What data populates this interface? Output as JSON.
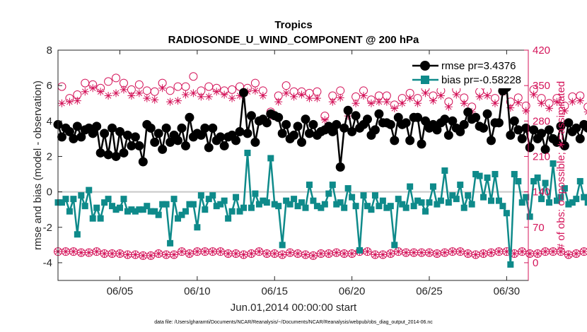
{
  "chart_data": {
    "type": "line",
    "title": "Tropics",
    "subtitle": "RADIOSONDE_U_WIND_COMPONENT @ 200 hPa",
    "xlabel": "Jun.01,2014 00:00:00 start",
    "ylabel": "rmse and bias (model - observation)",
    "y2label": "# of obs: o=possible; ∗=assimilated",
    "footnote": "data file: /Users/gharamti/Documents/NCAR/Reanalysis/~/Documents/NCAR/Reanalysis/webpub/obs_diag_output_2014-06.nc",
    "xlim": [
      1,
      31.4
    ],
    "ylim": [
      -5,
      8
    ],
    "y2lim": [
      -35,
      420
    ],
    "x_ticks": [
      5,
      10,
      15,
      20,
      25,
      30
    ],
    "x_tick_labels": [
      "06/05",
      "06/10",
      "06/15",
      "06/20",
      "06/25",
      "06/30"
    ],
    "y_ticks": [
      -4,
      -2,
      0,
      2,
      4,
      6,
      8
    ],
    "y2_ticks": [
      0,
      70,
      140,
      210,
      280,
      350,
      420
    ],
    "zero_line": 0,
    "colors": {
      "rmse": "#000000",
      "bias": "#0e8a8a",
      "obs": "#d4145a",
      "zero": "#c8c8c8"
    },
    "series": [
      {
        "name": "rmse",
        "legend": "rmse pr=3.4376",
        "marker": "circle",
        "x_start": 1.0,
        "x_step": 0.25,
        "values": [
          3.8,
          3.1,
          3.6,
          3.4,
          3.0,
          3.7,
          3.1,
          3.5,
          3.6,
          3.3,
          3.7,
          2.2,
          3.3,
          2.1,
          3.6,
          2.0,
          3.4,
          2.2,
          3.2,
          2.6,
          3.1,
          2.6,
          1.7,
          3.8,
          3.6,
          2.8,
          3.3,
          2.4,
          3.6,
          2.8,
          3.2,
          2.9,
          3.6,
          2.6,
          4.2,
          3.1,
          3.3,
          3.2,
          3.6,
          2.5,
          3.6,
          2.9,
          3.1,
          2.6,
          3.1,
          3.2,
          2.9,
          3.4,
          5.6,
          3.3,
          4.3,
          2.8,
          4.0,
          4.1,
          3.9,
          4.4,
          4.3,
          4.2,
          3.3,
          3.8,
          3.0,
          3.2,
          3.7,
          2.8,
          4.1,
          3.3,
          3.8,
          3.2,
          3.4,
          3.5,
          3.7,
          3.4,
          3.8,
          1.4,
          3.6,
          4.6,
          3.4,
          4.3,
          3.6,
          3.8,
          4.1,
          3.2,
          3.5,
          4.4,
          3.9,
          3.9,
          3.8,
          2.9,
          4.2,
          3.8,
          3.9,
          2.9,
          4.2,
          4.2,
          2.7,
          4.0,
          3.6,
          3.8,
          3.5,
          3.9,
          4.1,
          3.2,
          4.0,
          3.6,
          3.4,
          3.8,
          4.5,
          4.1,
          4.2,
          3.7,
          3.6,
          4.4,
          2.9,
          3.9,
          3.9,
          5.7,
          5.9,
          3.2,
          4.0,
          3.5,
          3.0,
          3.6,
          2.5,
          3.5,
          3.0,
          3.3,
          2.4,
          3.5,
          3.0,
          2.8,
          3.7,
          2.6,
          3.9,
          3.4,
          3.6,
          3.0,
          3.8,
          3.6,
          3.9,
          3.5,
          3.4,
          3.7,
          4.0,
          3.6,
          3.2,
          3.6,
          2.6,
          3.6,
          3.7,
          3.6,
          3.0,
          3.6,
          2.7,
          3.8,
          2.6,
          3.2,
          3.6,
          2.9,
          4.3,
          3.2,
          3.5,
          4.2,
          3.1,
          3.6,
          3.8,
          3.4,
          2.9,
          3.7,
          3.2,
          3.8,
          2.6,
          3.3,
          3.5,
          2.6,
          3.8,
          2.5
        ]
      },
      {
        "name": "bias",
        "legend": "bias pr=-0.58228",
        "marker": "square",
        "x_start": 1.0,
        "x_step": 0.25,
        "values": [
          -0.6,
          -0.6,
          -0.4,
          -1.1,
          -0.4,
          -2.4,
          -0.2,
          -0.8,
          0.1,
          -1.5,
          -0.9,
          -1.5,
          -0.6,
          -0.4,
          -0.8,
          -1.0,
          -0.9,
          -0.4,
          -1.1,
          -1.0,
          -1.1,
          -1.0,
          -1.0,
          -0.8,
          -1.1,
          -1.1,
          -1.3,
          -0.7,
          -0.7,
          -2.9,
          -0.4,
          -1.5,
          -1.3,
          -1.1,
          -0.7,
          -0.7,
          -2.0,
          -0.2,
          -1.0,
          -0.4,
          -0.2,
          -0.8,
          -0.7,
          -0.5,
          -1.5,
          -1.1,
          -0.3,
          -1.1,
          -0.9,
          2.2,
          -0.9,
          -0.1,
          -0.7,
          -0.5,
          -0.6,
          1.9,
          -0.7,
          -0.8,
          -3.0,
          -0.5,
          -0.7,
          -0.4,
          -0.8,
          -0.6,
          -0.9,
          0.4,
          -0.5,
          -0.8,
          -0.9,
          -0.7,
          -0.1,
          0.4,
          -0.7,
          -0.6,
          -0.9,
          0.2,
          -0.3,
          -0.8,
          -3.3,
          -0.2,
          -0.8,
          -1.0,
          -0.2,
          -0.8,
          -0.5,
          -0.9,
          -0.8,
          -3.0,
          -0.4,
          -0.7,
          -0.9,
          0.3,
          -0.8,
          -0.5,
          -0.6,
          -1.1,
          -0.6,
          0.3,
          -0.7,
          -0.5,
          1.2,
          -0.6,
          -0.2,
          -0.4,
          0.4,
          -0.9,
          -0.2,
          -0.7,
          1.0,
          0.9,
          -0.3,
          0.8,
          -0.5,
          1.0,
          -0.5,
          -0.8,
          -1.2,
          -4.1,
          1.0,
          0.6,
          -0.6,
          -0.3,
          -1.4,
          0.6,
          0.8,
          -0.4,
          0.5,
          -0.6,
          1.6,
          -0.5,
          -0.3,
          0.2,
          -0.7,
          -0.6,
          -0.4,
          0.6,
          -0.3,
          -0.6,
          -0.6,
          0.2,
          -0.5,
          0.2,
          -1.4,
          -0.9,
          -0.5,
          0.0,
          -0.5,
          -0.6,
          -0.9,
          -1.0,
          -2.5,
          0.4,
          -0.2,
          -0.8,
          -0.8,
          0.5,
          -0.3,
          -0.7,
          -0.6,
          -0.9,
          -0.8,
          0.4,
          -0.8,
          -0.6,
          -0.7,
          -1.3,
          -1.2,
          -0.3,
          -1.4,
          -0.6,
          -0.8,
          1.2,
          -1.5,
          -1.2,
          -1.5,
          -2.4,
          -3.5,
          -0.6,
          -2.4,
          -1.2
        ]
      },
      {
        "name": "possible",
        "axis": "right",
        "marker": "circle-open",
        "x_start": 1.0,
        "x_step": 0.25,
        "values": [
          22,
          348,
          22,
          325,
          22,
          332,
          20,
          355,
          20,
          352,
          22,
          345,
          18,
          358,
          18,
          365,
          18,
          355,
          16,
          342,
          16,
          352,
          14,
          340,
          14,
          338,
          18,
          355,
          16,
          340,
          16,
          348,
          22,
          348,
          18,
          368,
          22,
          340,
          22,
          348,
          22,
          345,
          22,
          340,
          18,
          342,
          18,
          348,
          16,
          345,
          18,
          355,
          22,
          340,
          18,
          298,
          18,
          330,
          16,
          350,
          20,
          338,
          18,
          338,
          16,
          335,
          14,
          338,
          18,
          290,
          18,
          330,
          20,
          340,
          18,
          300,
          18,
          328,
          22,
          340,
          22,
          322,
          16,
          330,
          16,
          330,
          18,
          312,
          22,
          325,
          20,
          335,
          20,
          325,
          20,
          345,
          20,
          330,
          18,
          340,
          20,
          318,
          22,
          342,
          22,
          326,
          18,
          308,
          16,
          338,
          18,
          340,
          20,
          325,
          22,
          346,
          22,
          318,
          18,
          326,
          22,
          310,
          18,
          342,
          18,
          325,
          22,
          315,
          22,
          325,
          22,
          310,
          16,
          328,
          18,
          330,
          22,
          308,
          22,
          325,
          20,
          318,
          20,
          312,
          16,
          325,
          18,
          338,
          22,
          328,
          22,
          315,
          18,
          330,
          20,
          325,
          18,
          318,
          16,
          328,
          18,
          325,
          20,
          308,
          22,
          298,
          16,
          320,
          18,
          312,
          20,
          320,
          16,
          300,
          18,
          318,
          18,
          328,
          14,
          308,
          14,
          318
        ]
      },
      {
        "name": "assimilated",
        "axis": "right",
        "marker": "asterisk",
        "x_start": 1.0,
        "x_step": 0.25,
        "values": [
          22,
          315,
          22,
          318,
          22,
          320,
          20,
          338,
          20,
          345,
          22,
          338,
          18,
          330,
          18,
          335,
          18,
          342,
          16,
          330,
          16,
          335,
          14,
          325,
          14,
          322,
          18,
          345,
          16,
          318,
          16,
          320,
          22,
          332,
          18,
          335,
          22,
          328,
          22,
          328,
          22,
          338,
          22,
          332,
          18,
          325,
          18,
          330,
          16,
          338,
          18,
          340,
          22,
          330,
          18,
          290,
          18,
          318,
          16,
          335,
          20,
          328,
          18,
          332,
          16,
          325,
          14,
          325,
          18,
          282,
          18,
          318,
          20,
          326,
          18,
          290,
          18,
          315,
          22,
          330,
          22,
          315,
          16,
          318,
          16,
          318,
          18,
          305,
          22,
          315,
          20,
          325,
          20,
          315,
          20,
          335,
          20,
          320,
          18,
          330,
          20,
          308,
          22,
          332,
          22,
          315,
          18,
          298,
          16,
          328,
          18,
          330,
          20,
          315,
          22,
          336,
          22,
          306,
          18,
          316,
          22,
          300,
          18,
          332,
          18,
          315,
          22,
          305,
          22,
          318,
          22,
          300,
          16,
          318,
          18,
          320,
          22,
          298,
          22,
          315,
          20,
          308,
          20,
          300,
          16,
          315,
          18,
          328,
          22,
          318,
          22,
          305,
          18,
          320,
          20,
          315,
          18,
          308,
          16,
          318,
          18,
          315,
          20,
          298,
          22,
          288,
          16,
          310,
          18,
          302,
          20,
          310,
          16,
          290,
          18,
          308,
          18,
          318,
          14,
          298,
          14,
          308
        ]
      }
    ]
  }
}
